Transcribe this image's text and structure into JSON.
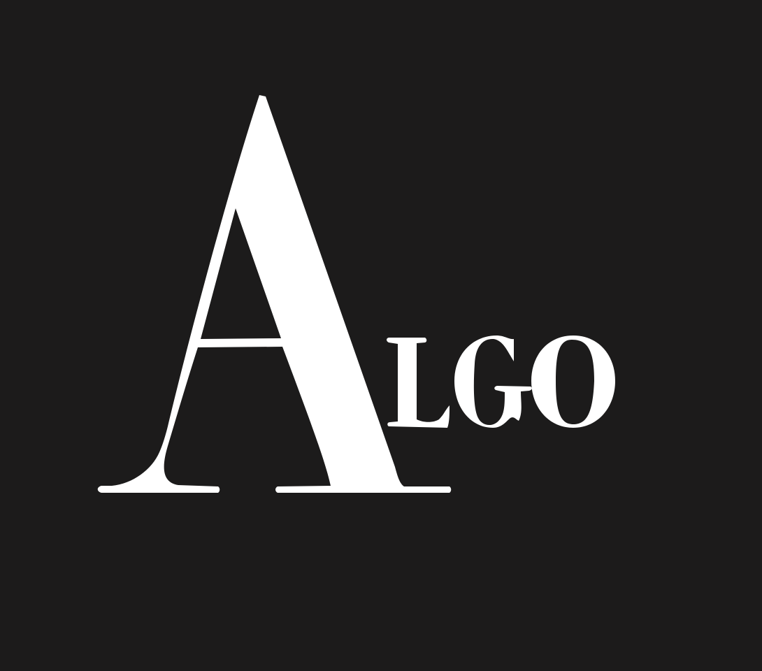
{
  "logo": {
    "text": "ALGO",
    "initial": "A",
    "rest": "LGO"
  },
  "colors": {
    "background": "#1c1b1b",
    "foreground": "#ffffff"
  }
}
